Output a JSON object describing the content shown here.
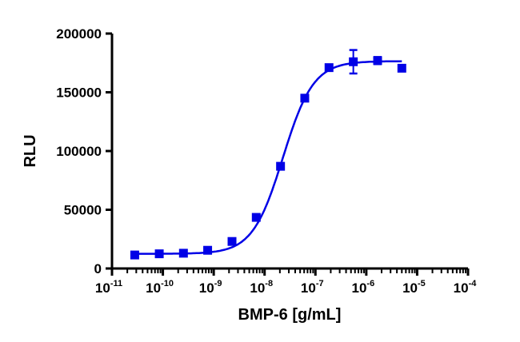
{
  "chart_data": {
    "type": "scatter",
    "title": "",
    "xlabel": "BMP-6 [g/mL]",
    "ylabel": "RLU",
    "x_scale": "log",
    "xlim": [
      1e-11,
      0.0001
    ],
    "ylim": [
      0,
      200000
    ],
    "x_tick_labels": [
      {
        "base": "10",
        "exp": "-11"
      },
      {
        "base": "10",
        "exp": "-10"
      },
      {
        "base": "10",
        "exp": "-9"
      },
      {
        "base": "10",
        "exp": "-8"
      },
      {
        "base": "10",
        "exp": "-7"
      },
      {
        "base": "10",
        "exp": "-6"
      },
      {
        "base": "10",
        "exp": "-5"
      },
      {
        "base": "10",
        "exp": "-4"
      }
    ],
    "y_tick_labels": [
      "0",
      "50000",
      "100000",
      "150000",
      "200000"
    ],
    "grid": false,
    "color": "#0000e6",
    "series": [
      {
        "x": [
          2.8e-11,
          8.5e-11,
          2.54e-10,
          7.6e-10,
          2.29e-09,
          6.86e-09,
          2.06e-08,
          6.17e-08,
          1.85e-07,
          5.56e-07,
          1.67e-06,
          5e-06
        ],
        "y": [
          11500,
          12500,
          13000,
          15500,
          23000,
          43500,
          87000,
          145000,
          171000,
          176000,
          177000,
          170500
        ],
        "error": [
          0,
          0,
          0,
          0,
          0,
          2500,
          0,
          0,
          0,
          10000,
          3000,
          0
        ]
      }
    ],
    "fit": {
      "model": "4PL",
      "bottom": 12500,
      "top": 176500,
      "ec50": 2.3e-08,
      "hill": 1.45
    }
  }
}
